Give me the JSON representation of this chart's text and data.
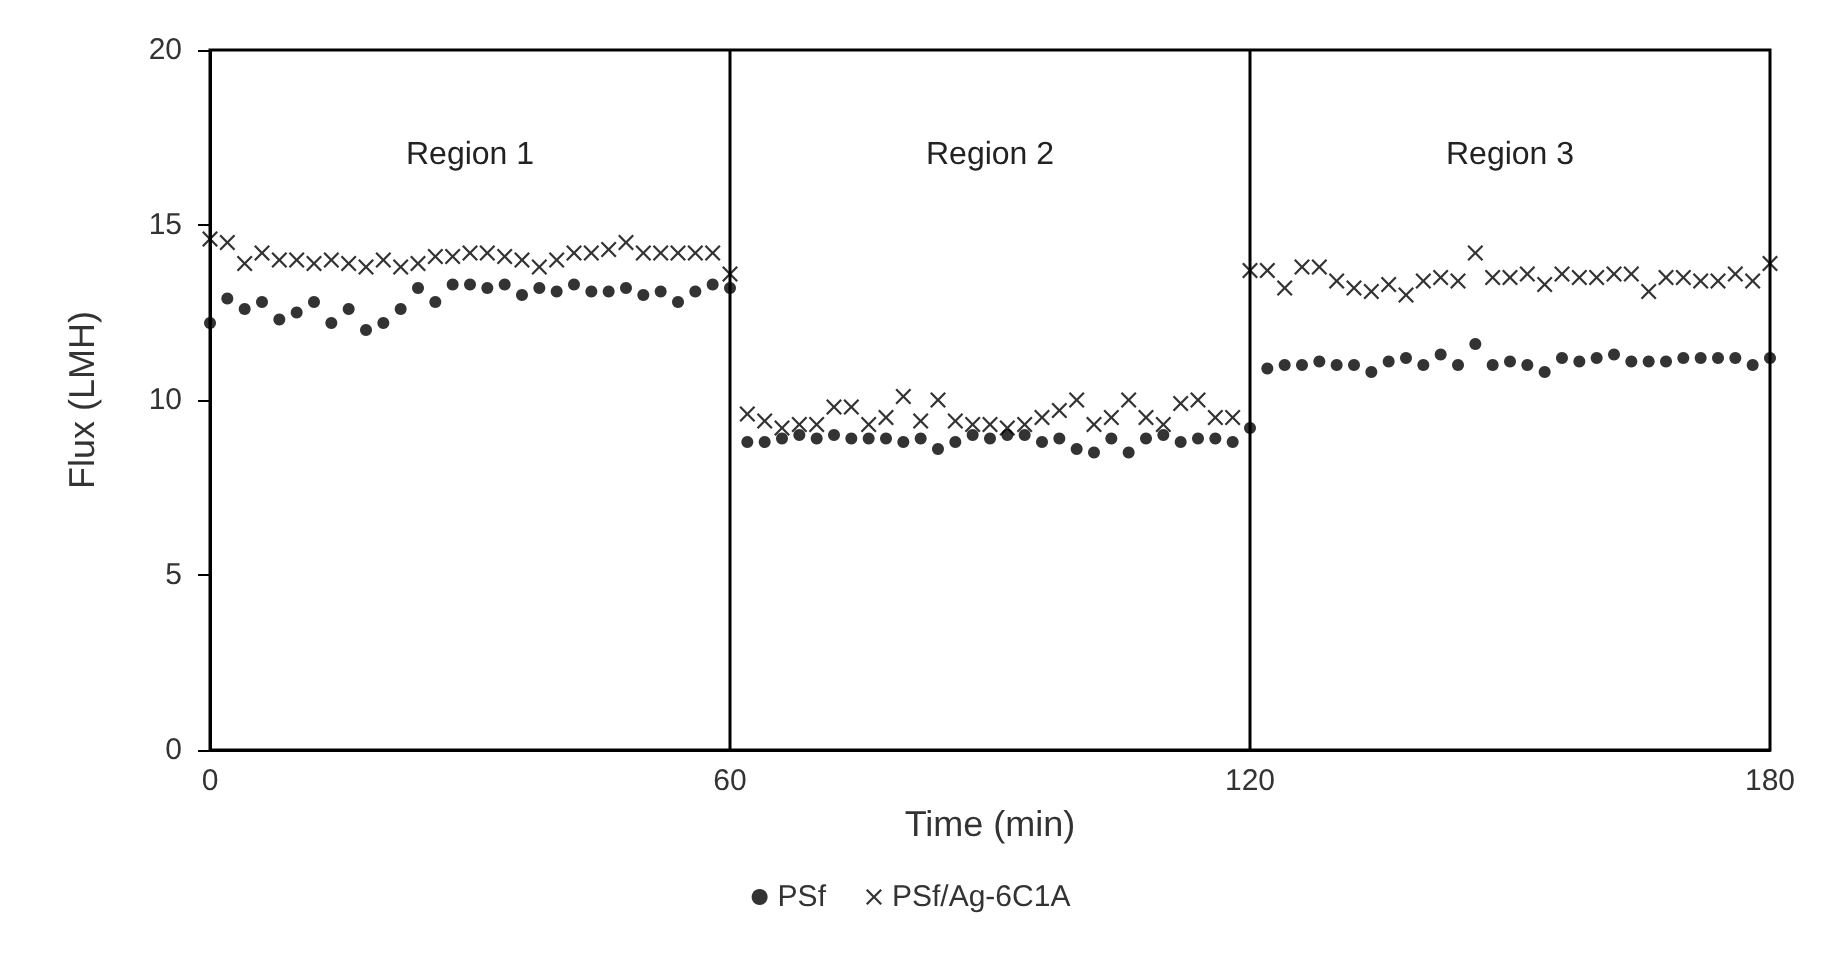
{
  "chart_data": {
    "type": "scatter",
    "xlabel": "Time (min)",
    "ylabel": "Flux (LMH)",
    "x": [
      0,
      2,
      4,
      6,
      8,
      10,
      12,
      14,
      16,
      18,
      20,
      22,
      24,
      26,
      28,
      30,
      32,
      34,
      36,
      38,
      40,
      42,
      44,
      46,
      48,
      50,
      52,
      54,
      56,
      58,
      60,
      62,
      64,
      66,
      68,
      70,
      72,
      74,
      76,
      78,
      80,
      82,
      84,
      86,
      88,
      90,
      92,
      94,
      96,
      98,
      100,
      102,
      104,
      106,
      108,
      110,
      112,
      114,
      116,
      118,
      120,
      122,
      124,
      126,
      128,
      130,
      132,
      134,
      136,
      138,
      140,
      142,
      144,
      146,
      148,
      150,
      152,
      154,
      156,
      158,
      160,
      162,
      164,
      166,
      168,
      170,
      172,
      174,
      176,
      178,
      180
    ],
    "series": [
      {
        "name": "PSf",
        "color": "#000000",
        "marker": "circle",
        "values": [
          12.2,
          12.9,
          12.6,
          12.8,
          12.3,
          12.5,
          12.8,
          12.2,
          12.6,
          12.0,
          12.2,
          12.6,
          13.2,
          12.8,
          13.3,
          13.3,
          13.2,
          13.3,
          13.0,
          13.2,
          13.1,
          13.3,
          13.1,
          13.1,
          13.2,
          13.0,
          13.1,
          12.8,
          13.1,
          13.3,
          13.2,
          8.8,
          8.8,
          8.9,
          9.0,
          8.9,
          9.0,
          8.9,
          8.9,
          8.9,
          8.8,
          8.9,
          8.6,
          8.8,
          9.0,
          8.9,
          9.0,
          9.0,
          8.8,
          8.9,
          8.6,
          8.5,
          8.9,
          8.5,
          8.9,
          9.0,
          8.8,
          8.9,
          8.9,
          8.8,
          9.2,
          10.9,
          11.0,
          11.0,
          11.1,
          11.0,
          11.0,
          10.8,
          11.1,
          11.2,
          11.0,
          11.3,
          11.0,
          11.6,
          11.0,
          11.1,
          11.0,
          10.8,
          11.2,
          11.1,
          11.2,
          11.3,
          11.1,
          11.1,
          11.1,
          11.2,
          11.2,
          11.2,
          11.2,
          11.0,
          11.2
        ]
      },
      {
        "name": "PSf/Ag-6C1A",
        "color": "#000000",
        "marker": "cross",
        "values": [
          14.6,
          14.5,
          13.9,
          14.2,
          14.0,
          14.0,
          13.9,
          14.0,
          13.9,
          13.8,
          14.0,
          13.8,
          13.9,
          14.1,
          14.1,
          14.2,
          14.2,
          14.1,
          14.0,
          13.8,
          14.0,
          14.2,
          14.2,
          14.3,
          14.5,
          14.2,
          14.2,
          14.2,
          14.2,
          14.2,
          13.6,
          9.6,
          9.4,
          9.2,
          9.3,
          9.3,
          9.8,
          9.8,
          9.3,
          9.5,
          10.1,
          9.4,
          10.0,
          9.4,
          9.3,
          9.3,
          9.2,
          9.3,
          9.5,
          9.7,
          10.0,
          9.3,
          9.5,
          10.0,
          9.5,
          9.3,
          9.9,
          10.0,
          9.5,
          9.5,
          13.7,
          13.7,
          13.2,
          13.8,
          13.8,
          13.4,
          13.2,
          13.1,
          13.3,
          13.0,
          13.4,
          13.5,
          13.4,
          14.2,
          13.5,
          13.5,
          13.6,
          13.3,
          13.6,
          13.5,
          13.5,
          13.6,
          13.6,
          13.1,
          13.5,
          13.5,
          13.4,
          13.4,
          13.6,
          13.4,
          13.9
        ]
      }
    ],
    "xlim": [
      0,
      180
    ],
    "xticks": [
      0,
      60,
      120,
      180
    ],
    "ylim": [
      0,
      20
    ],
    "yticks": [
      0,
      5,
      10,
      15,
      20
    ],
    "ref_lines": [
      {
        "axis": "x",
        "value": 60,
        "color": "#000000"
      },
      {
        "axis": "x",
        "value": 120,
        "color": "#000000"
      }
    ],
    "annotations": [
      "Region 1",
      "Region 2",
      "Region 3"
    ],
    "grid": false,
    "legend": "bottom"
  }
}
